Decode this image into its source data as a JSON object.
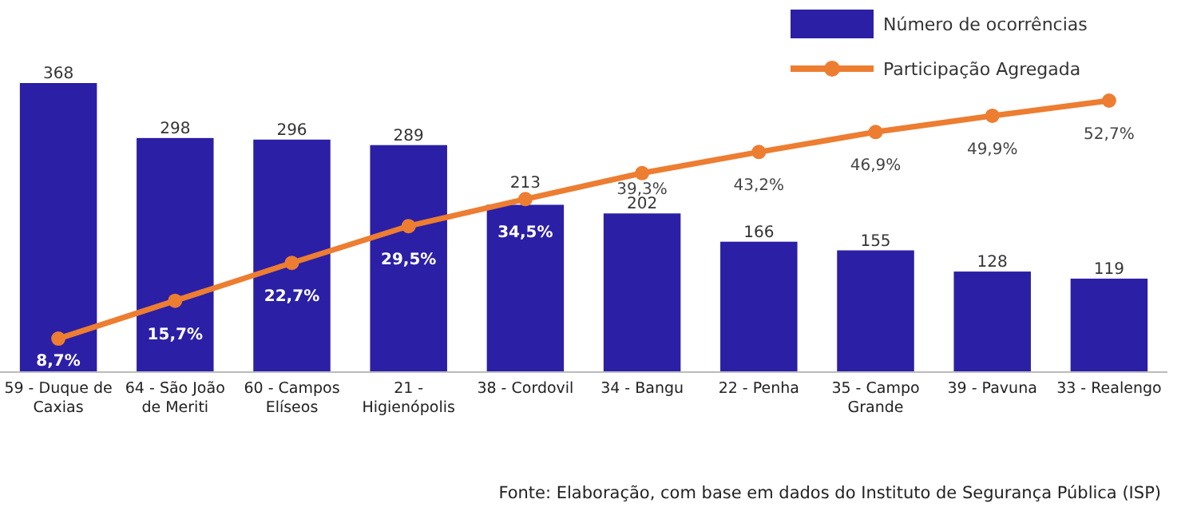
{
  "chart_data": {
    "type": "bar",
    "categories": [
      "59 - Duque de Caxias",
      "64 - São João de Meriti",
      "60 - Campos Elíseos",
      "21 - Higienópolis",
      "38 - Cordovil",
      "34 - Bangu",
      "22 - Penha",
      "35 - Campo Grande",
      "39 - Pavuna",
      "33 - Realengo"
    ],
    "series": [
      {
        "name": "Número de ocorrências",
        "color": "#2b1fa6",
        "values": [
          368,
          298,
          296,
          289,
          213,
          202,
          166,
          155,
          128,
          119
        ]
      },
      {
        "name": "Participação Agregada",
        "type": "line",
        "axis": "y2",
        "color": "#ed7d31",
        "marker": "circle",
        "values": [
          8.7,
          15.7,
          22.7,
          29.5,
          34.5,
          39.3,
          43.2,
          46.9,
          49.9,
          52.7
        ],
        "value_labels": [
          "8,7%",
          "15,7%",
          "22,7%",
          "29,5%",
          "34,5%",
          "39,3%",
          "43,2%",
          "46,9%",
          "49,9%",
          "52,7%"
        ]
      }
    ],
    "data_labels": true,
    "legend": "top right",
    "annotations": [
      "Fonte: Elaboração, com base em dados do Instituto de Segurança Pública (ISP)"
    ]
  }
}
